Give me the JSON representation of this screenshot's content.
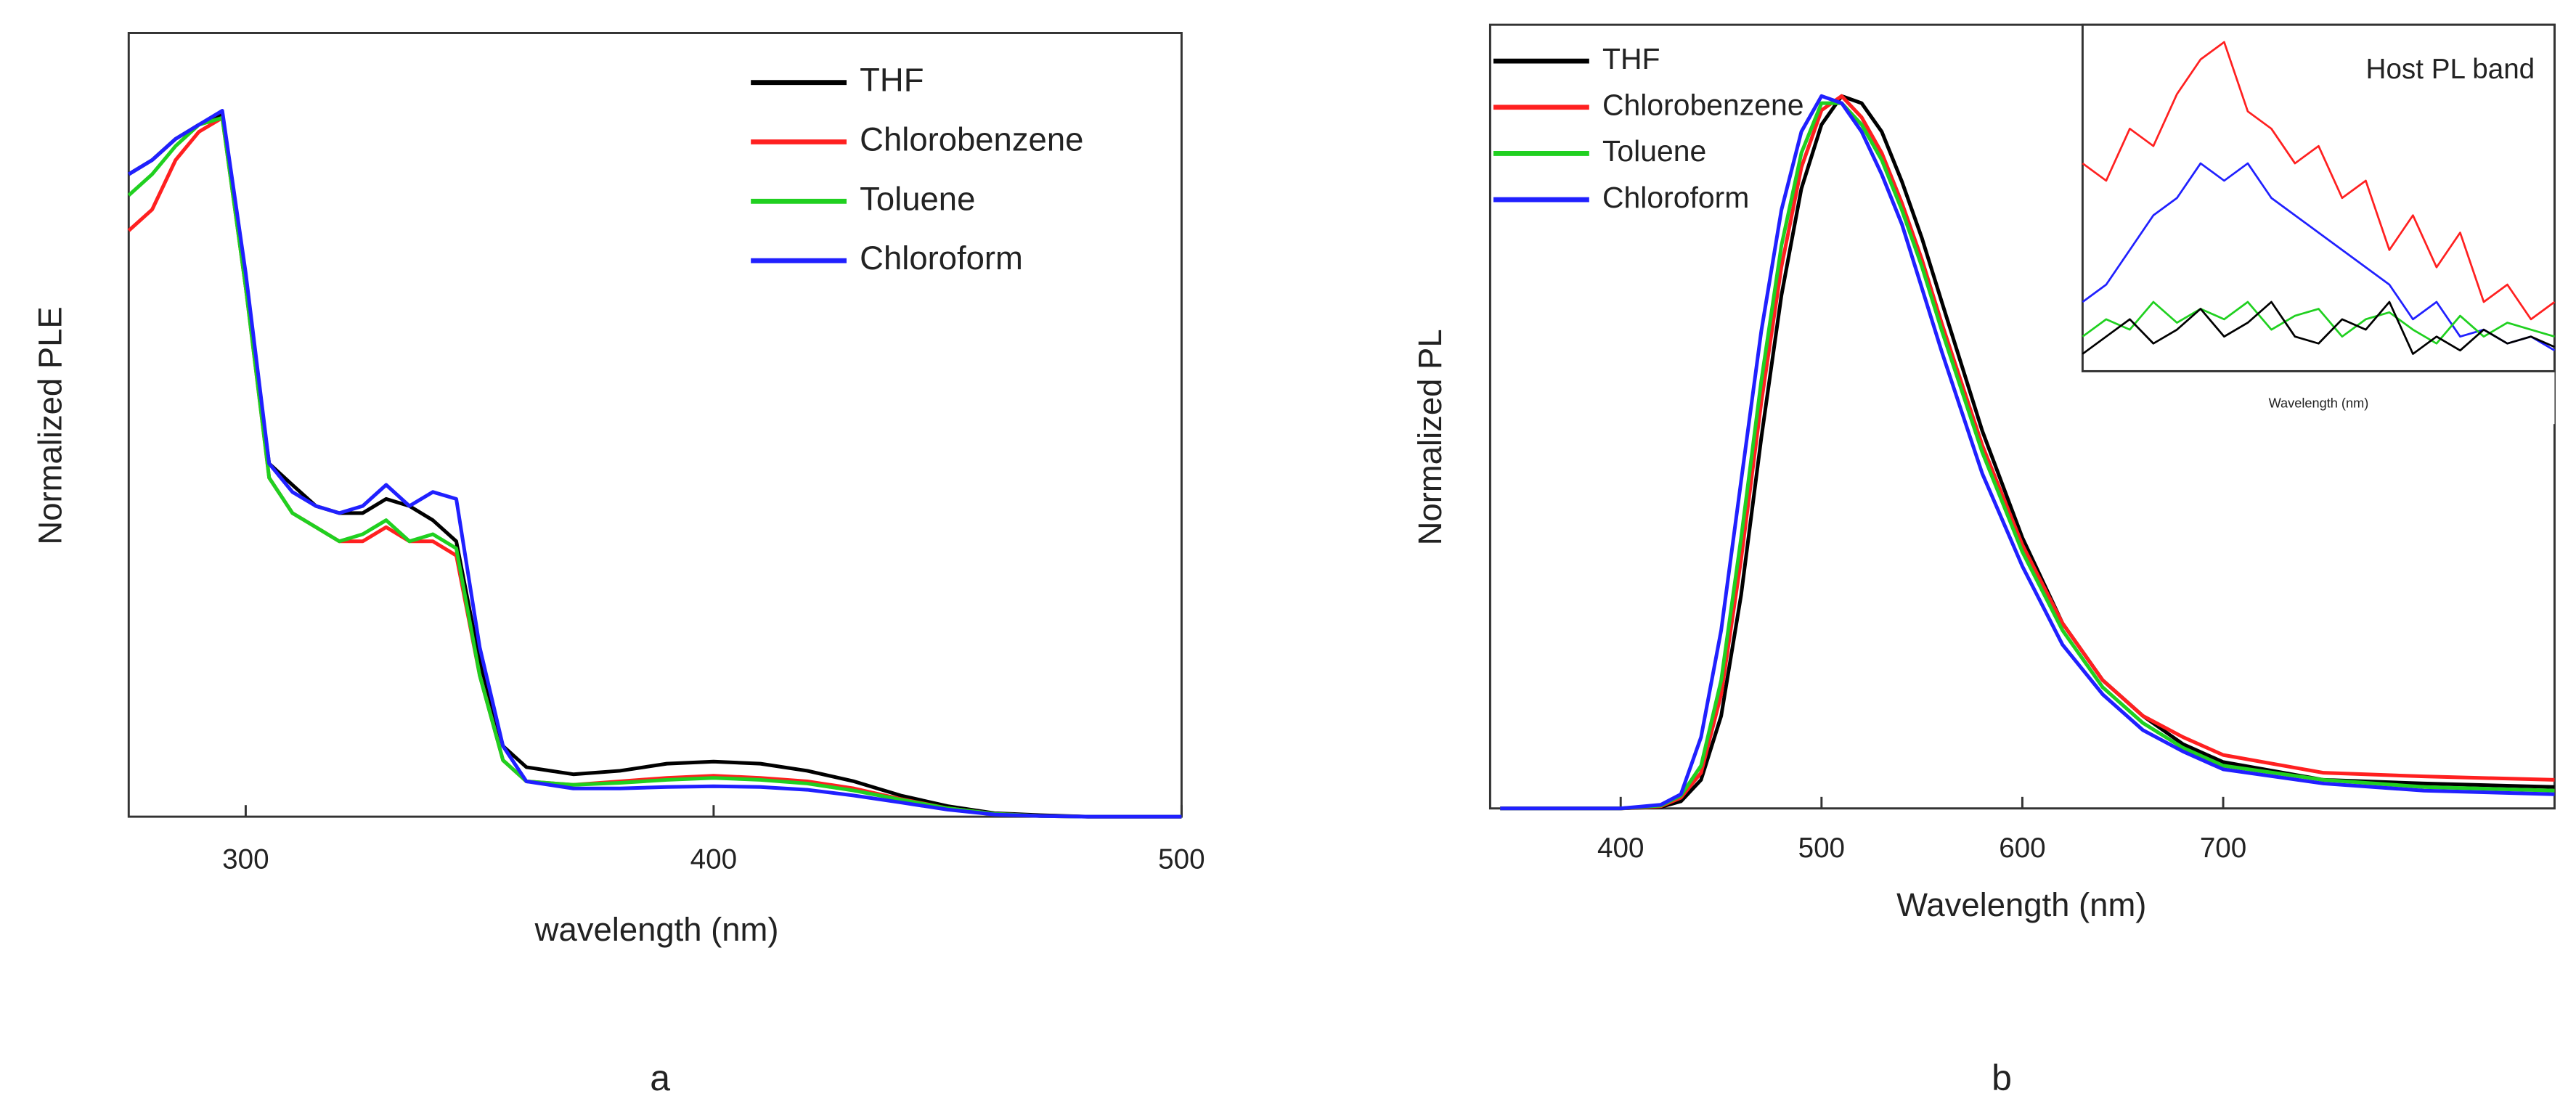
{
  "chart_data": [
    {
      "type": "line",
      "caption": "a",
      "x_label": "wavelength (nm)",
      "y_label": "Normalized PLE",
      "xlim": [
        275,
        500
      ],
      "xticks": [
        300,
        400,
        500
      ],
      "ylim": [
        0,
        1.11
      ],
      "legend": "upper right",
      "x": [
        275,
        280,
        285,
        290,
        295,
        300,
        305,
        310,
        315,
        320,
        325,
        330,
        335,
        340,
        345,
        350,
        355,
        360,
        370,
        380,
        390,
        400,
        410,
        420,
        430,
        440,
        450,
        460,
        470,
        480,
        500
      ],
      "series": [
        {
          "name": "THF",
          "color": "#000000",
          "values": [
            0.91,
            0.93,
            0.96,
            0.98,
            0.995,
            0.75,
            0.5,
            0.47,
            0.44,
            0.43,
            0.43,
            0.45,
            0.44,
            0.42,
            0.39,
            0.22,
            0.1,
            0.07,
            0.06,
            0.065,
            0.075,
            0.078,
            0.075,
            0.065,
            0.05,
            0.03,
            0.015,
            0.005,
            0.002,
            0,
            0
          ]
        },
        {
          "name": "Chlorobenzene",
          "color": "#ff2020",
          "values": [
            0.83,
            0.86,
            0.93,
            0.97,
            0.99,
            0.75,
            0.48,
            0.43,
            0.41,
            0.39,
            0.39,
            0.41,
            0.39,
            0.39,
            0.37,
            0.2,
            0.08,
            0.05,
            0.045,
            0.05,
            0.055,
            0.058,
            0.055,
            0.05,
            0.04,
            0.025,
            0.012,
            0.004,
            0.001,
            0,
            0
          ]
        },
        {
          "name": "Toluene",
          "color": "#20d020",
          "values": [
            0.88,
            0.91,
            0.95,
            0.98,
            0.99,
            0.75,
            0.48,
            0.43,
            0.41,
            0.39,
            0.4,
            0.42,
            0.39,
            0.4,
            0.38,
            0.2,
            0.08,
            0.05,
            0.045,
            0.048,
            0.052,
            0.055,
            0.052,
            0.047,
            0.037,
            0.024,
            0.012,
            0.004,
            0.001,
            0,
            0
          ]
        },
        {
          "name": "Chloroform",
          "color": "#2020ff",
          "values": [
            0.91,
            0.93,
            0.96,
            0.98,
            1.0,
            0.77,
            0.5,
            0.46,
            0.44,
            0.43,
            0.44,
            0.47,
            0.44,
            0.46,
            0.45,
            0.24,
            0.1,
            0.05,
            0.04,
            0.04,
            0.042,
            0.043,
            0.042,
            0.038,
            0.03,
            0.02,
            0.01,
            0.003,
            0.001,
            0,
            0
          ]
        }
      ]
    },
    {
      "type": "line",
      "caption": "b",
      "x_label": "Wavelength (nm)",
      "y_label": "Normalized PL",
      "xlim": [
        335,
        865
      ],
      "xticks": [
        400,
        500,
        600,
        700
      ],
      "ylim": [
        0,
        1.1
      ],
      "legend": "upper left",
      "x": [
        340,
        400,
        420,
        430,
        440,
        450,
        460,
        470,
        480,
        490,
        500,
        510,
        520,
        530,
        540,
        550,
        560,
        580,
        600,
        620,
        640,
        660,
        680,
        700,
        750,
        800,
        865
      ],
      "series": [
        {
          "name": "THF",
          "color": "#000000",
          "values": [
            0,
            0,
            0.002,
            0.01,
            0.04,
            0.13,
            0.3,
            0.52,
            0.72,
            0.87,
            0.96,
            1.0,
            0.99,
            0.95,
            0.88,
            0.8,
            0.71,
            0.53,
            0.38,
            0.26,
            0.18,
            0.13,
            0.09,
            0.065,
            0.04,
            0.035,
            0.03
          ]
        },
        {
          "name": "Chlorobenzene",
          "color": "#ff2020",
          "values": [
            0,
            0,
            0.003,
            0.015,
            0.05,
            0.16,
            0.35,
            0.57,
            0.76,
            0.9,
            0.98,
            1.0,
            0.97,
            0.92,
            0.85,
            0.77,
            0.68,
            0.51,
            0.37,
            0.26,
            0.18,
            0.13,
            0.1,
            0.075,
            0.05,
            0.045,
            0.04
          ]
        },
        {
          "name": "Toluene",
          "color": "#20d020",
          "values": [
            0,
            0,
            0.004,
            0.018,
            0.06,
            0.18,
            0.38,
            0.6,
            0.79,
            0.92,
            0.99,
            0.99,
            0.96,
            0.91,
            0.84,
            0.76,
            0.67,
            0.5,
            0.36,
            0.25,
            0.17,
            0.12,
            0.085,
            0.06,
            0.04,
            0.03,
            0.025
          ]
        },
        {
          "name": "Chloroform",
          "color": "#2020ff",
          "values": [
            0,
            0,
            0.005,
            0.02,
            0.1,
            0.25,
            0.46,
            0.67,
            0.84,
            0.95,
            1.0,
            0.99,
            0.95,
            0.89,
            0.82,
            0.73,
            0.64,
            0.47,
            0.34,
            0.23,
            0.16,
            0.11,
            0.08,
            0.055,
            0.035,
            0.025,
            0.02
          ]
        }
      ]
    },
    {
      "type": "line",
      "title": "Host PL band",
      "x_label": "Wavelength (nm)",
      "ylim": [
        0,
        1
      ],
      "series": [
        {
          "color": "#ff2020",
          "values": [
            0.6,
            0.55,
            0.7,
            0.65,
            0.8,
            0.9,
            0.95,
            0.75,
            0.7,
            0.6,
            0.65,
            0.5,
            0.55,
            0.35,
            0.45,
            0.3,
            0.4,
            0.2,
            0.25,
            0.15,
            0.2
          ]
        },
        {
          "color": "#2020ff",
          "values": [
            0.2,
            0.25,
            0.35,
            0.45,
            0.5,
            0.6,
            0.55,
            0.6,
            0.5,
            0.45,
            0.4,
            0.35,
            0.3,
            0.25,
            0.15,
            0.2,
            0.1,
            0.12,
            0.08,
            0.1,
            0.06
          ]
        },
        {
          "color": "#20d020",
          "values": [
            0.1,
            0.15,
            0.12,
            0.2,
            0.14,
            0.18,
            0.15,
            0.2,
            0.12,
            0.16,
            0.18,
            0.1,
            0.15,
            0.17,
            0.12,
            0.08,
            0.16,
            0.1,
            0.14,
            0.12,
            0.1
          ]
        },
        {
          "color": "#000000",
          "values": [
            0.05,
            0.1,
            0.15,
            0.08,
            0.12,
            0.18,
            0.1,
            0.14,
            0.2,
            0.1,
            0.08,
            0.15,
            0.12,
            0.2,
            0.05,
            0.1,
            0.06,
            0.12,
            0.08,
            0.1,
            0.07
          ]
        }
      ]
    }
  ]
}
